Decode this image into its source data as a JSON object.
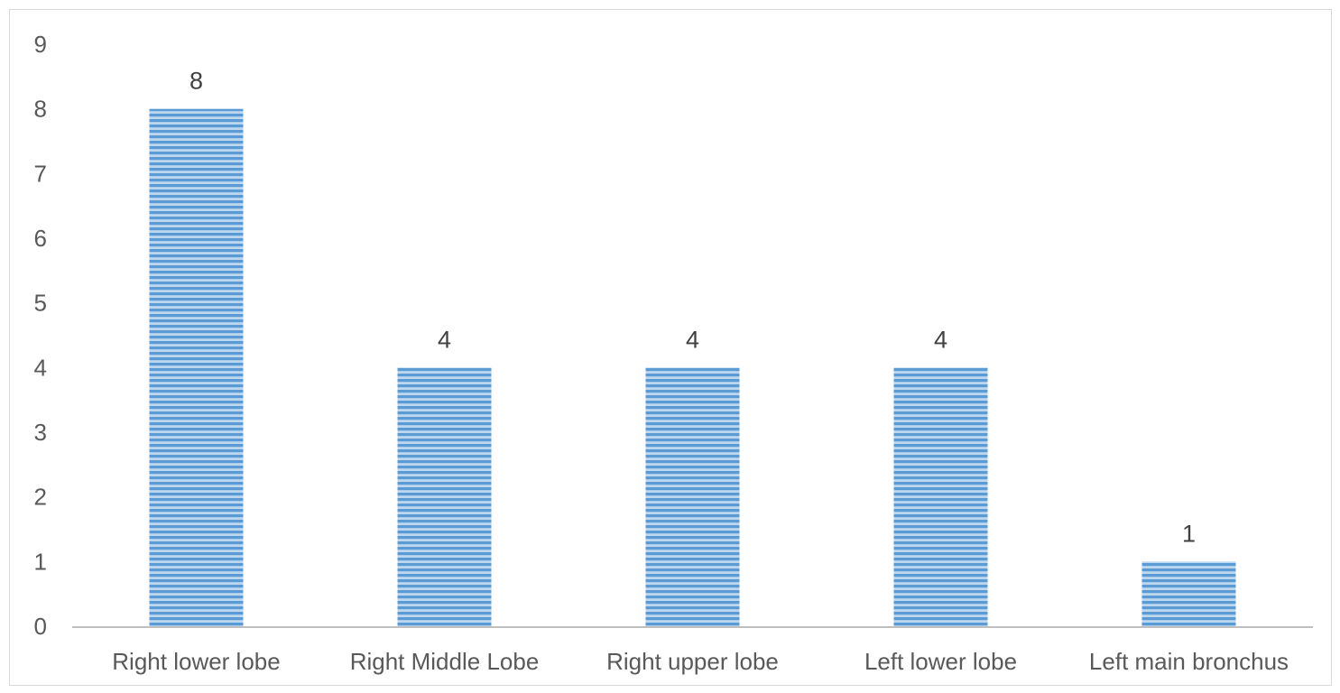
{
  "chart_data": {
    "type": "bar",
    "title": "",
    "xlabel": "",
    "ylabel": "",
    "categories": [
      "Right lower lobe",
      "Right Middle Lobe",
      "Right upper lobe",
      "Left lower lobe",
      "Left main bronchus"
    ],
    "values": [
      8,
      4,
      4,
      4,
      1
    ],
    "data_labels": [
      "8",
      "4",
      "4",
      "4",
      "1"
    ],
    "ylim": [
      0,
      9
    ],
    "yticks": [
      "0",
      "1",
      "2",
      "3",
      "4",
      "5",
      "6",
      "7",
      "8",
      "9"
    ],
    "grid": false,
    "legend": "none",
    "colors": {
      "bar_stripe_dark": "#5b9bd5",
      "bar_stripe_light": "#bdd7ee",
      "axis": "#bfbfbf",
      "tick_text": "#595959",
      "label_text": "#404040"
    }
  }
}
